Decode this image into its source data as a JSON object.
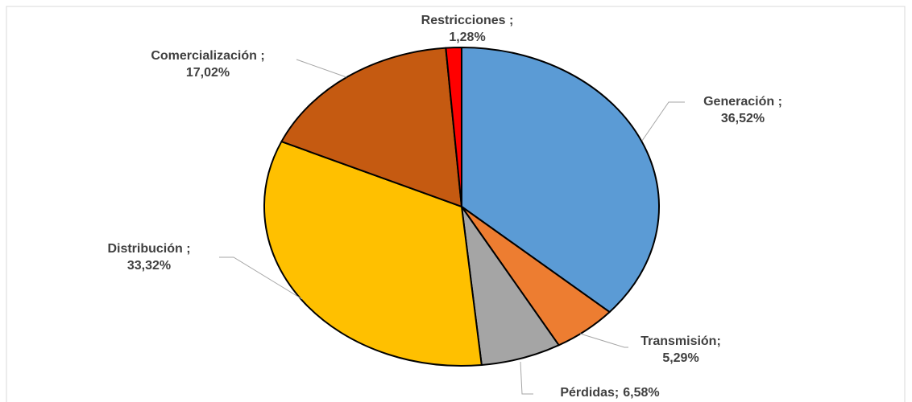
{
  "chart_data": {
    "type": "pie",
    "categories": [
      "Generación ;",
      "Transmisión;",
      "Pérdidas;",
      "Distribución ;",
      "Comercialización ;",
      "Restricciones ;"
    ],
    "values": [
      36.52,
      5.29,
      6.58,
      33.32,
      17.02,
      1.28
    ],
    "value_labels": [
      "36,52%",
      "5,29%",
      "6,58%",
      "33,32%",
      "17,02%",
      "1,28%"
    ],
    "colors": [
      "#5b9bd5",
      "#ed7d31",
      "#a5a5a5",
      "#ffc000",
      "#c55a11",
      "#ff0000"
    ]
  }
}
